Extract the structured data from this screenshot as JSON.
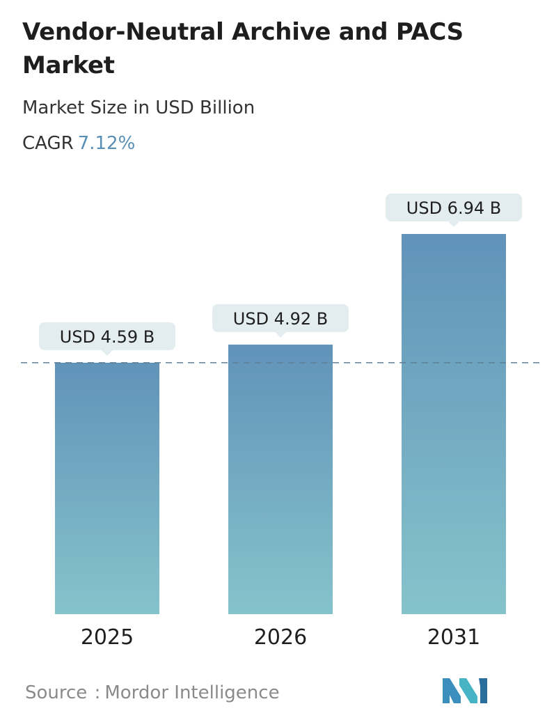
{
  "header": {
    "title": "Vendor-Neutral Archive and PACS Market",
    "subtitle": "Market Size in USD Billion",
    "cagr_label": "CAGR",
    "cagr_value": "7.12%"
  },
  "chart_data": {
    "type": "bar",
    "categories": [
      "2025",
      "2026",
      "2031"
    ],
    "values": [
      4.59,
      4.92,
      6.94
    ],
    "data_labels": [
      "USD 4.59 B",
      "USD 4.92 B",
      "USD 6.94 B"
    ],
    "title": "Vendor-Neutral Archive and PACS Market",
    "subtitle": "Market Size in USD Billion",
    "xlabel": "",
    "ylabel": "",
    "ylim": [
      0,
      6.94
    ],
    "grid": false,
    "reference_line": "dashed line at first bar value (4.59)",
    "colors": {
      "bar_top": "#6193b9",
      "bar_bottom": "#85c3cb",
      "label_bg": "#e3edef",
      "dash": "#5f7f94"
    }
  },
  "footer": {
    "source_label": "Source",
    "source_sep": ":",
    "source_value": "Mordor Intelligence",
    "logo_icon": "mordor-intelligence-logo-icon"
  }
}
